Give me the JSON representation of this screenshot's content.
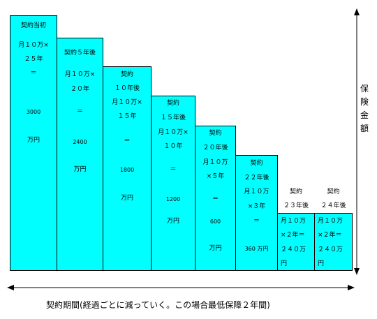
{
  "axis": {
    "vertical_label": "保険金額",
    "horizontal_label": "契約期間(経過ごとに減っていく。この場合最低保障２年間)"
  },
  "bars": [
    {
      "lines": [
        "契約当初",
        "月１０万×",
        "２５年",
        "＝",
        "3000",
        "万円"
      ]
    },
    {
      "lines": [
        "契約５年後",
        "月１０万×",
        "２０年",
        "＝",
        "2400",
        "万円"
      ]
    },
    {
      "lines": [
        "契約",
        "１０年後",
        "月１０万×",
        "１５年",
        "＝",
        "1800",
        "万円"
      ]
    },
    {
      "lines": [
        "契約",
        "１５年後",
        "月１０万×",
        "１０年",
        "＝",
        "1200",
        "万円"
      ]
    },
    {
      "lines": [
        "契約",
        "２０年後",
        "月１０万",
        "×５年",
        "＝",
        "600",
        "万円"
      ]
    },
    {
      "lines": [
        "契約",
        "２２年後",
        "月１０万",
        "×３年",
        "＝",
        "360 万円"
      ]
    },
    {
      "lines": [
        "契約",
        "２３年後",
        "月１０万",
        "×２年＝",
        "２４０万",
        "円"
      ]
    },
    {
      "lines": [
        "契約",
        "２４年後",
        "月１０万",
        "×２年＝",
        "２４０万",
        "円"
      ]
    }
  ],
  "colors": {
    "bar_fill": "#00ffff",
    "stroke": "#000000"
  }
}
